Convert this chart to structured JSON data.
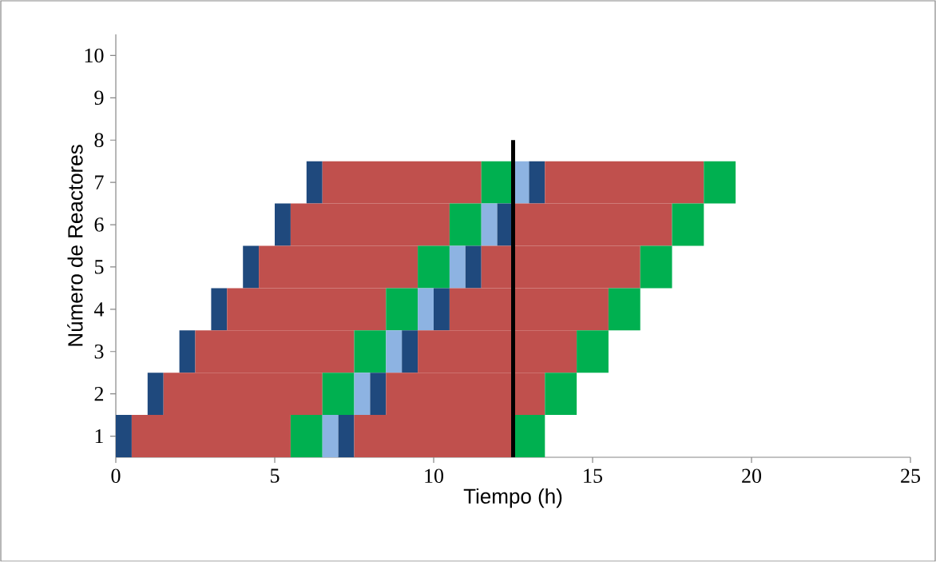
{
  "chart_data": {
    "type": "bar",
    "orientation": "horizontal",
    "xlabel": "Tiempo (h)",
    "ylabel": "Número de Reactores",
    "categories": [
      "10",
      "9",
      "8",
      "7",
      "6",
      "5",
      "4",
      "3",
      "2",
      "1"
    ],
    "series": [
      {
        "color": "#1f497d",
        "base": [
          null,
          null,
          null,
          6,
          5,
          4,
          3,
          2,
          1,
          0
        ],
        "values": [
          null,
          null,
          null,
          0.5,
          0.5,
          0.5,
          0.5,
          0.5,
          0.5,
          0.5
        ]
      },
      {
        "color": "#c0504d",
        "base": [
          null,
          null,
          null,
          6.5,
          5.5,
          4.5,
          3.5,
          2.5,
          1.5,
          0.5
        ],
        "values": [
          null,
          null,
          null,
          5,
          5,
          5,
          5,
          5,
          5,
          5
        ]
      },
      {
        "color": "#00b050",
        "base": [
          null,
          null,
          null,
          11.5,
          10.5,
          9.5,
          8.5,
          7.5,
          6.5,
          5.5
        ],
        "values": [
          null,
          null,
          null,
          1,
          1,
          1,
          1,
          1,
          1,
          1
        ]
      },
      {
        "color": "#8db3e2",
        "base": [
          null,
          null,
          null,
          12.5,
          11.5,
          10.5,
          9.5,
          8.5,
          7.5,
          6.5
        ],
        "values": [
          null,
          null,
          null,
          0.5,
          0.5,
          0.5,
          0.5,
          0.5,
          0.5,
          0.5
        ]
      },
      {
        "color": "#1f497d",
        "base": [
          null,
          null,
          null,
          13,
          12,
          11,
          10,
          9,
          8,
          7
        ],
        "values": [
          null,
          null,
          null,
          0.5,
          0.5,
          0.5,
          0.5,
          0.5,
          0.5,
          0.5
        ]
      },
      {
        "color": "#c0504d",
        "base": [
          null,
          null,
          null,
          13.5,
          12.5,
          11.5,
          10.5,
          9.5,
          8.5,
          7.5
        ],
        "values": [
          null,
          null,
          null,
          5,
          5,
          5,
          5,
          5,
          5,
          5
        ]
      },
      {
        "color": "#00b050",
        "base": [
          null,
          null,
          null,
          18.5,
          17.5,
          16.5,
          15.5,
          14.5,
          13.5,
          12.5
        ],
        "values": [
          null,
          null,
          null,
          1,
          1,
          1,
          1,
          1,
          1,
          1
        ]
      }
    ],
    "xlim": [
      0,
      25
    ],
    "xticks": [
      0,
      5,
      10,
      15,
      20,
      25
    ],
    "ref_lines": [
      {
        "axis": "x",
        "value": 12.5,
        "color": "#000000"
      }
    ]
  }
}
